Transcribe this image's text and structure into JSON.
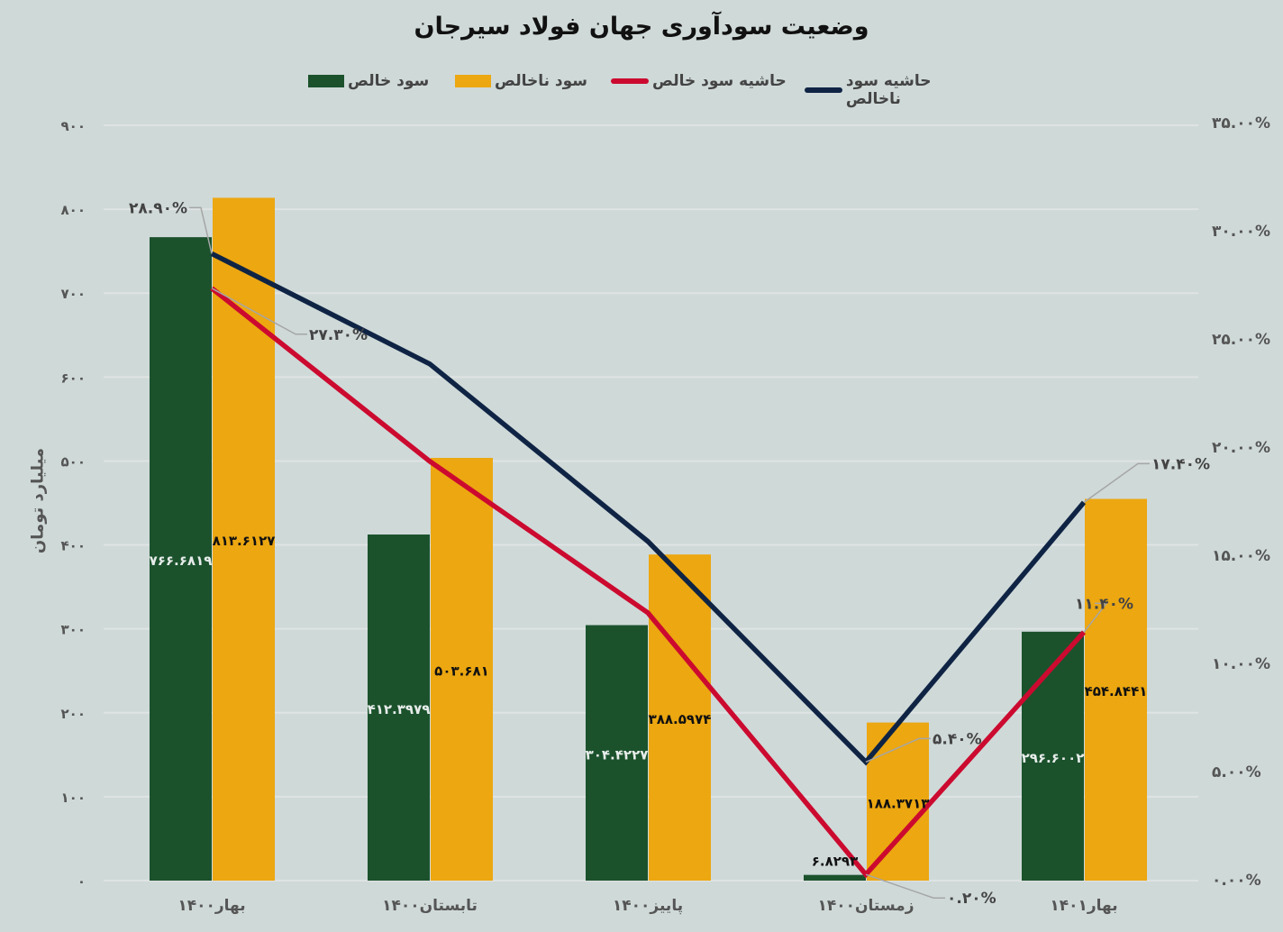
{
  "chart_data": {
    "type": "bar+line",
    "title": "وضعیت سودآوری جهان فولاد سیرجان",
    "ylabel": "میلیارد تومان",
    "y2label": "",
    "legend_position": "top",
    "grid": true,
    "ylim": [
      0,
      900
    ],
    "y2lim": [
      0,
      35
    ],
    "categories": [
      "بهار۱۴۰۰",
      "تابستان۱۴۰۰",
      "پاییز۱۴۰۰",
      "زمستان۱۴۰۰",
      "بهار۱۴۰۱"
    ],
    "yticks": [
      "۰",
      "۱۰۰",
      "۲۰۰",
      "۳۰۰",
      "۴۰۰",
      "۵۰۰",
      "۶۰۰",
      "۷۰۰",
      "۸۰۰",
      "۹۰۰"
    ],
    "y2ticks": [
      "۰.۰۰%",
      "۵.۰۰%",
      "۱۰.۰۰%",
      "۱۵.۰۰%",
      "۲۰.۰۰%",
      "۲۵.۰۰%",
      "۳۰.۰۰%",
      "۳۵.۰۰%"
    ],
    "bar_series": [
      {
        "name": "سود خالص",
        "color": "#1b522c",
        "label_color": "#e6ecea",
        "values": [
          766.6819,
          412.3979,
          304.4227,
          6.8293,
          296.6002
        ],
        "labels": [
          "۷۶۶.۶۸۱۹",
          "۴۱۲.۳۹۷۹",
          "۳۰۴.۴۲۲۷",
          "۶.۸۲۹۳",
          "۲۹۶.۶۰۰۲"
        ]
      },
      {
        "name": "سود ناخالص",
        "color": "#eca711",
        "label_color": "#111111",
        "values": [
          813.6127,
          503.681,
          388.5974,
          188.3713,
          454.8441
        ],
        "labels": [
          "۸۱۳.۶۱۲۷",
          "۵۰۳.۶۸۱",
          "۳۸۸.۵۹۷۴",
          "۱۸۸.۳۷۱۳",
          "۴۵۴.۸۴۴۱"
        ]
      }
    ],
    "line_series": [
      {
        "name": "حاشیه سود خالص",
        "color": "#cc0a2f",
        "axis": "right",
        "values": [
          27.3,
          19.3,
          12.3,
          0.2,
          11.4
        ],
        "labels": [
          "۲۷.۳۰%",
          "",
          "",
          "۰.۲۰%",
          "۱۱.۴۰%"
        ]
      },
      {
        "name": "حاشیه سود ناخالص",
        "color": "#0f2444",
        "axis": "right",
        "values": [
          28.9,
          23.8,
          15.6,
          5.4,
          17.4
        ],
        "labels": [
          "۲۸.۹۰%",
          "",
          "",
          "۵.۴۰%",
          "۱۷.۴۰%"
        ]
      }
    ]
  }
}
